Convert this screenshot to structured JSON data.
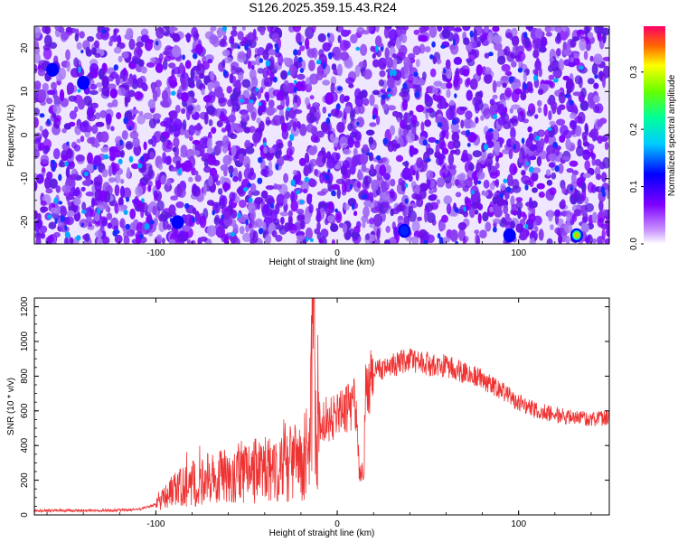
{
  "figure": {
    "title": "S126.2025.359.15.43.R24"
  },
  "chart_data": [
    {
      "type": "heatmap",
      "xlabel": "Height of straight line (km)",
      "ylabel": "Frequency (Hz)",
      "xlim": [
        -167,
        150
      ],
      "ylim": [
        -25,
        25
      ],
      "xticks": [
        -100,
        0,
        100
      ],
      "yticks": [
        -20,
        -10,
        0,
        10,
        20
      ],
      "colorbar": {
        "label": "Normalized spectral amplitude",
        "range": [
          0,
          0.38
        ],
        "ticks": [
          0.0,
          0.1,
          0.2,
          0.3
        ]
      },
      "hotspots": [
        {
          "x": 132,
          "y": -23,
          "value": 0.33
        },
        {
          "x": 37,
          "y": -22,
          "value": 0.13
        },
        {
          "x": 95,
          "y": -23,
          "value": 0.1
        },
        {
          "x": -88,
          "y": -20,
          "value": 0.08
        },
        {
          "x": -157,
          "y": 15,
          "value": 0.08
        },
        {
          "x": -140,
          "y": 12,
          "value": 0.08
        }
      ]
    },
    {
      "type": "line",
      "xlabel": "Height of straight line (km)",
      "ylabel": "SNR (10 * v/v)",
      "xlim": [
        -167,
        150
      ],
      "ylim": [
        0,
        1250
      ],
      "xticks": [
        -100,
        0,
        100
      ],
      "yticks": [
        0,
        200,
        400,
        600,
        800,
        1000,
        1200
      ],
      "color": "#ee3333",
      "series": [
        {
          "x": [
            -167,
            -150,
            -130,
            -110,
            -100,
            -95,
            -90,
            -80,
            -70,
            -60,
            -50,
            -40,
            -30,
            -20,
            -15,
            -13,
            -12,
            -10,
            -5,
            0,
            5,
            10,
            13,
            14,
            15,
            18,
            20,
            25,
            30,
            35,
            40,
            45,
            50,
            60,
            70,
            80,
            90,
            100,
            110,
            120,
            130,
            140,
            150
          ],
          "y": [
            25,
            25,
            25,
            30,
            60,
            100,
            140,
            180,
            210,
            230,
            240,
            260,
            280,
            320,
            380,
            1250,
            420,
            520,
            560,
            580,
            610,
            640,
            200,
            650,
            700,
            760,
            820,
            840,
            860,
            880,
            900,
            880,
            870,
            860,
            820,
            780,
            720,
            650,
            600,
            580,
            560,
            550,
            560
          ]
        }
      ]
    }
  ]
}
